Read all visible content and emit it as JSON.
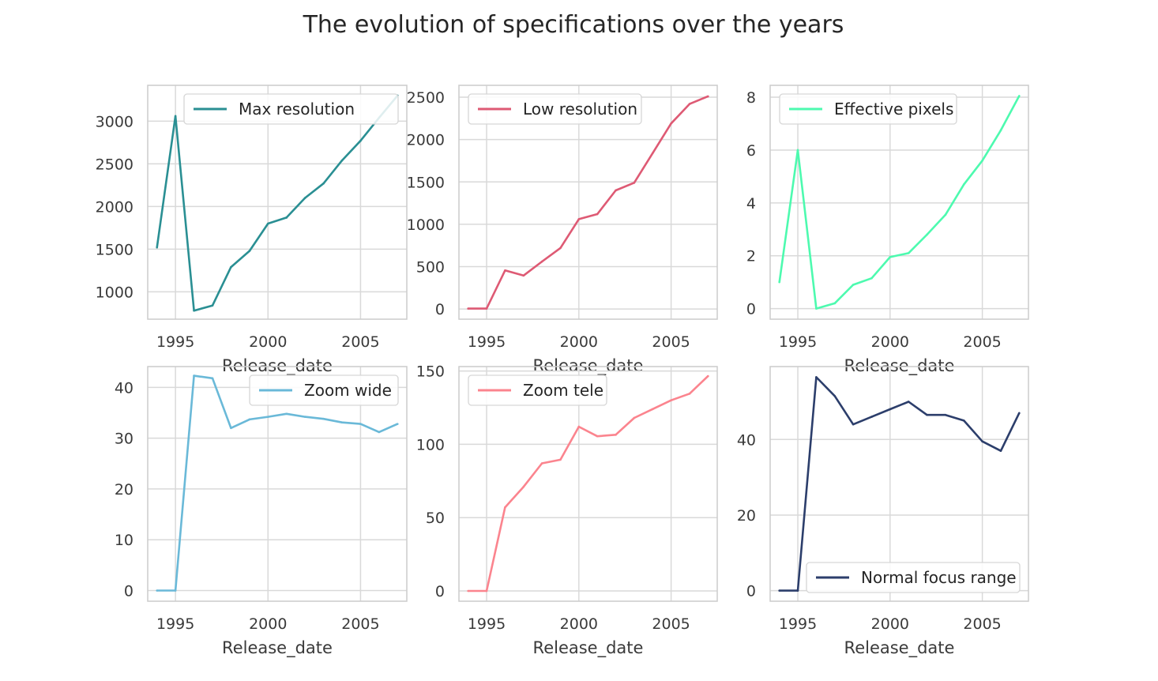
{
  "figure_title": "The evolution of specifications over the years",
  "chart_data": [
    {
      "type": "line",
      "x": [
        1994,
        1995,
        1996,
        1997,
        1998,
        1999,
        2000,
        2001,
        2002,
        2003,
        2004,
        2005,
        2006,
        2007
      ],
      "series": [
        {
          "name": "Max resolution",
          "color": "#2a8f93",
          "values": [
            1520,
            3060,
            780,
            840,
            1290,
            1480,
            1800,
            1870,
            2100,
            2270,
            2540,
            2770,
            3040,
            3300
          ]
        }
      ],
      "xlabel": "Release_date",
      "ylabel": "",
      "xticks": [
        1995,
        2000,
        2005
      ],
      "yticks": [
        1000,
        1500,
        2000,
        2500,
        3000
      ],
      "xlim": [
        1993.5,
        2007.5
      ],
      "ylim": [
        680,
        3420
      ],
      "legend": "top-right",
      "grid": true
    },
    {
      "type": "line",
      "x": [
        1994,
        1995,
        1996,
        1997,
        1998,
        1999,
        2000,
        2001,
        2002,
        2003,
        2004,
        2005,
        2006,
        2007
      ],
      "series": [
        {
          "name": "Low resolution",
          "color": "#de5a74",
          "values": [
            5,
            5,
            455,
            395,
            560,
            720,
            1060,
            1120,
            1400,
            1490,
            1840,
            2190,
            2420,
            2510
          ]
        }
      ],
      "xlabel": "Release_date",
      "ylabel": "",
      "xticks": [
        1995,
        2000,
        2005
      ],
      "yticks": [
        0,
        500,
        1000,
        1500,
        2000,
        2500
      ],
      "xlim": [
        1993.5,
        2007.5
      ],
      "ylim": [
        -120,
        2640
      ],
      "legend": "top-left",
      "grid": true
    },
    {
      "type": "line",
      "x": [
        1994,
        1995,
        1996,
        1997,
        1998,
        1999,
        2000,
        2001,
        2002,
        2003,
        2004,
        2005,
        2006,
        2007
      ],
      "series": [
        {
          "name": "Effective pixels",
          "color": "#4dfaaf",
          "values": [
            1.0,
            6.0,
            0.0,
            0.2,
            0.9,
            1.15,
            1.95,
            2.1,
            2.8,
            3.55,
            4.7,
            5.6,
            6.75,
            8.05
          ]
        }
      ],
      "xlabel": "Release_date",
      "ylabel": "",
      "xticks": [
        1995,
        2000,
        2005
      ],
      "yticks": [
        0,
        2,
        4,
        6,
        8
      ],
      "xlim": [
        1993.5,
        2007.5
      ],
      "ylim": [
        -0.4,
        8.45
      ],
      "legend": "top-left",
      "grid": true
    },
    {
      "type": "line",
      "x": [
        1994,
        1995,
        1996,
        1997,
        1998,
        1999,
        2000,
        2001,
        2002,
        2003,
        2004,
        2005,
        2006,
        2007
      ],
      "series": [
        {
          "name": "Zoom wide",
          "color": "#6ab9d8",
          "values": [
            0,
            0,
            42.3,
            41.8,
            32.0,
            33.7,
            34.2,
            34.8,
            34.2,
            33.8,
            33.1,
            32.8,
            31.2,
            32.8
          ]
        }
      ],
      "xlabel": "Release_date",
      "ylabel": "",
      "xticks": [
        1995,
        2000,
        2005
      ],
      "yticks": [
        0,
        10,
        20,
        30,
        40
      ],
      "xlim": [
        1993.5,
        2007.5
      ],
      "ylim": [
        -2.1,
        44.1
      ],
      "legend": "top-right",
      "grid": true
    },
    {
      "type": "line",
      "x": [
        1994,
        1995,
        1996,
        1997,
        1998,
        1999,
        2000,
        2001,
        2002,
        2003,
        2004,
        2005,
        2006,
        2007
      ],
      "series": [
        {
          "name": "Zoom tele",
          "color": "#fb848e",
          "values": [
            0,
            0,
            57,
            71,
            87,
            89.5,
            112,
            105.5,
            106.5,
            118,
            124,
            130,
            134.5,
            146.5
          ]
        }
      ],
      "xlabel": "Release_date",
      "ylabel": "",
      "xticks": [
        1995,
        2000,
        2005
      ],
      "yticks": [
        0,
        50,
        100,
        150
      ],
      "xlim": [
        1993.5,
        2007.5
      ],
      "ylim": [
        -7,
        153
      ],
      "legend": "top-left",
      "grid": true
    },
    {
      "type": "line",
      "x": [
        1994,
        1995,
        1996,
        1997,
        1998,
        1999,
        2000,
        2001,
        2002,
        2003,
        2004,
        2005,
        2006,
        2007
      ],
      "series": [
        {
          "name": "Normal focus range",
          "color": "#2c3e6b",
          "values": [
            0,
            0,
            56.5,
            51.5,
            44,
            46,
            48,
            50,
            46.5,
            46.5,
            45,
            39.5,
            37,
            47
          ]
        }
      ],
      "xlabel": "Release_date",
      "ylabel": "",
      "xticks": [
        1995,
        2000,
        2005
      ],
      "yticks": [
        0,
        20,
        40
      ],
      "xlim": [
        1993.5,
        2007.5
      ],
      "ylim": [
        -2.8,
        59.3
      ],
      "legend": "bottom-right",
      "grid": true
    }
  ]
}
